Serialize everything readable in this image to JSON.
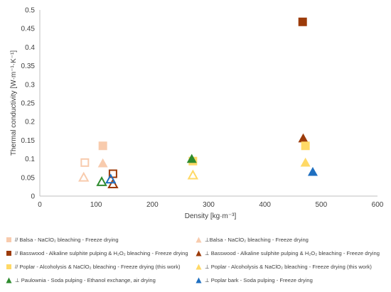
{
  "chart_data": {
    "type": "scatter",
    "title": "",
    "xlabel": "Density  [kg·m⁻³]",
    "ylabel": "Thermal conductivity [W·m⁻¹·K⁻¹]",
    "xlim": [
      0,
      600
    ],
    "ylim": [
      0,
      0.5
    ],
    "x_ticks": [
      "0",
      "100",
      "200",
      "300",
      "400",
      "500",
      "600"
    ],
    "y_ticks": [
      "0",
      "0.05",
      "0.1",
      "0.15",
      "0.2",
      "0.25",
      "0.3",
      "0.35",
      "0.4",
      "0.45",
      "0.5"
    ],
    "grid": false,
    "legend_position": "bottom",
    "series": [
      {
        "name": "// Balsa - NaClO₂ bleaching - Freeze drying",
        "marker": "square",
        "fill": true,
        "color": "#F8CBAD",
        "points": [
          {
            "x": 112,
            "y": 0.135
          }
        ]
      },
      {
        "name": "⊥Balsa - NaClO₂ bleaching - Freeze drying",
        "marker": "triangle",
        "fill": true,
        "color": "#F8CBAD",
        "points": [
          {
            "x": 112,
            "y": 0.088
          }
        ]
      },
      {
        "name": "// Basswood - Alkaline sulphite pulping & H₂O₂ bleaching - Freeze drying",
        "marker": "square",
        "fill": true,
        "color": "#9C3B0A",
        "points": [
          {
            "x": 467,
            "y": 0.468
          }
        ]
      },
      {
        "name": "⊥ Basswood - Alkaline sulphite pulping & H₂O₂ bleaching - Freeze drying",
        "marker": "triangle",
        "fill": true,
        "color": "#9C3B0A",
        "points": [
          {
            "x": 468,
            "y": 0.155
          }
        ]
      },
      {
        "name": "// Poplar - Alcoholysis &  NaClO₂ bleaching - Freeze drying (this work)",
        "marker": "square",
        "fill": true,
        "color": "#FFD966",
        "points": [
          {
            "x": 272,
            "y": 0.094
          },
          {
            "x": 472,
            "y": 0.135
          }
        ]
      },
      {
        "name": "⊥ Poplar - Alcoholysis &  NaClO₂ bleaching - Freeze drying (this work)",
        "marker": "triangle",
        "fill": true,
        "color": "#FFD966",
        "points": [
          {
            "x": 472,
            "y": 0.09
          }
        ]
      },
      {
        "name": "⊥ Paulownia - Soda pulping - Ethanol exchange, air drying",
        "marker": "triangle",
        "fill": true,
        "color": "#2E8B2E",
        "points": [
          {
            "x": 270,
            "y": 0.1
          }
        ]
      },
      {
        "name": "⊥ Poplar bark - Soda pulping - Freeze drying",
        "marker": "triangle",
        "fill": true,
        "color": "#1F6FC0",
        "points": [
          {
            "x": 485,
            "y": 0.065
          }
        ]
      },
      {
        "name": "",
        "marker": "square",
        "fill": false,
        "color": "#F8CBAD",
        "points": [
          {
            "x": 80,
            "y": 0.09
          }
        ]
      },
      {
        "name": "",
        "marker": "triangle",
        "fill": false,
        "color": "#F8CBAD",
        "points": [
          {
            "x": 78,
            "y": 0.05
          }
        ]
      },
      {
        "name": "",
        "marker": "square",
        "fill": false,
        "color": "#9C3B0A",
        "points": [
          {
            "x": 130,
            "y": 0.06
          }
        ]
      },
      {
        "name": "",
        "marker": "triangle",
        "fill": false,
        "color": "#9C3B0A",
        "points": [
          {
            "x": 130,
            "y": 0.032
          }
        ]
      },
      {
        "name": "",
        "marker": "triangle",
        "fill": false,
        "color": "#2E8B2E",
        "points": [
          {
            "x": 110,
            "y": 0.038
          }
        ]
      },
      {
        "name": "",
        "marker": "triangle",
        "fill": false,
        "color": "#1F6FC0",
        "points": [
          {
            "x": 126,
            "y": 0.045
          }
        ]
      },
      {
        "name": "",
        "marker": "triangle",
        "fill": false,
        "color": "#FFD966",
        "points": [
          {
            "x": 272,
            "y": 0.056
          }
        ]
      }
    ]
  },
  "legend_items": [
    {
      "label": "// Balsa - NaClO₂ bleaching - Freeze drying",
      "marker": "square",
      "color": "#F8CBAD"
    },
    {
      "label": "⊥Balsa - NaClO₂ bleaching - Freeze drying",
      "marker": "triangle",
      "color": "#F8CBAD"
    },
    {
      "label": "// Basswood - Alkaline sulphite pulping & H₂O₂ bleaching - Freeze drying",
      "marker": "square",
      "color": "#9C3B0A"
    },
    {
      "label": "⊥ Basswood - Alkaline sulphite pulping & H₂O₂ bleaching - Freeze drying",
      "marker": "triangle",
      "color": "#9C3B0A"
    },
    {
      "label": "// Poplar - Alcoholysis &  NaClO₂ bleaching - Freeze drying (this work)",
      "marker": "square",
      "color": "#FFD966"
    },
    {
      "label": "⊥ Poplar - Alcoholysis &  NaClO₂ bleaching - Freeze drying (this work)",
      "marker": "triangle",
      "color": "#FFD966"
    },
    {
      "label": "⊥ Paulownia - Soda pulping - Ethanol exchange, air drying",
      "marker": "triangle",
      "color": "#2E8B2E"
    },
    {
      "label": "⊥ Poplar bark - Soda pulping - Freeze drying",
      "marker": "triangle",
      "color": "#1F6FC0"
    }
  ]
}
